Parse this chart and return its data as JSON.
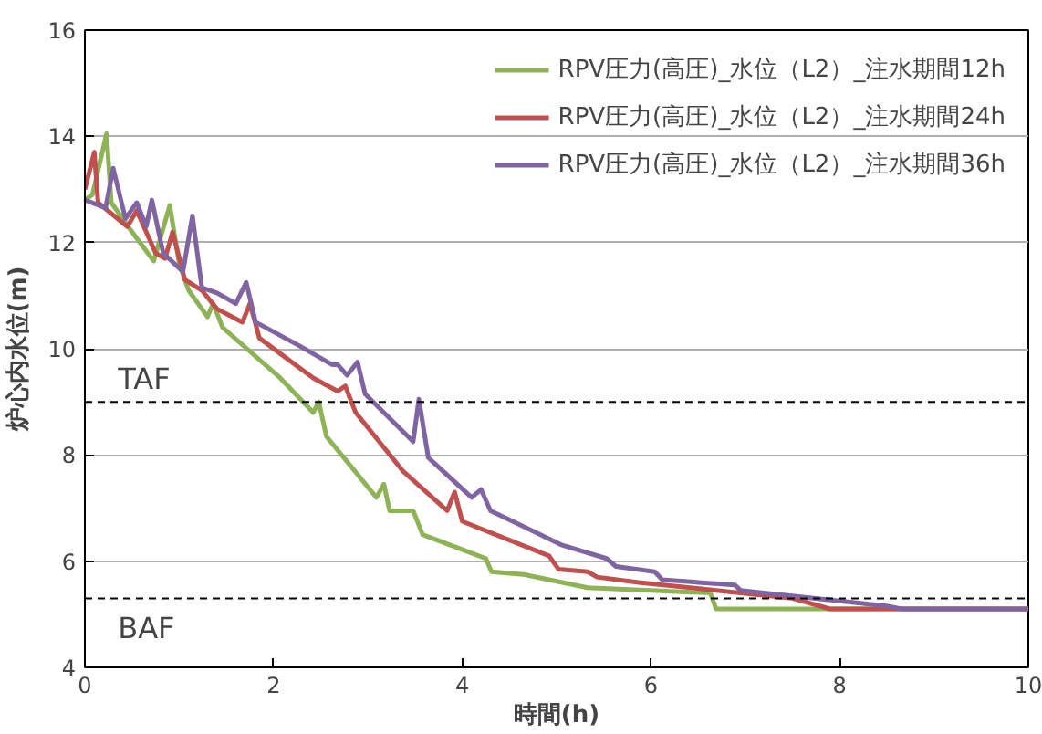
{
  "chart_data": {
    "type": "line",
    "xlabel": "時間(h)",
    "ylabel": "炉心内水位(m)",
    "xlim": [
      0,
      10
    ],
    "ylim": [
      4,
      16
    ],
    "xticks": [
      0,
      2,
      4,
      6,
      8,
      10
    ],
    "yticks": [
      4,
      6,
      8,
      10,
      12,
      14,
      16
    ],
    "grid": "y",
    "legend": "top right",
    "line_style": "solid",
    "ref_lines": [
      {
        "axis": "y",
        "value": 9.0,
        "label": "TAF",
        "color": "#000000",
        "line_style": "dashed"
      },
      {
        "axis": "y",
        "value": 5.3,
        "label": "BAF",
        "color": "#000000",
        "line_style": "dashed"
      }
    ],
    "series": [
      {
        "name": "RPV圧力(高圧)_水位（L2）_注水期間12h",
        "color": "#8db356",
        "x": [
          0,
          0.08,
          0.23,
          0.28,
          0.5,
          0.73,
          0.9,
          1.0,
          1.1,
          1.3,
          1.36,
          1.46,
          2.07,
          2.42,
          2.48,
          2.56,
          3.09,
          3.17,
          3.23,
          3.48,
          3.58,
          4.25,
          4.31,
          4.65,
          5.33,
          6.63,
          6.69,
          10
        ],
        "values": [
          12.8,
          12.9,
          14.05,
          12.75,
          12.2,
          11.65,
          12.7,
          11.6,
          11.1,
          10.6,
          10.85,
          10.4,
          9.45,
          8.8,
          9.0,
          8.35,
          7.2,
          7.45,
          6.95,
          6.95,
          6.5,
          6.05,
          5.8,
          5.75,
          5.5,
          5.4,
          5.1,
          5.1
        ]
      },
      {
        "name": "RPV圧力(高圧)_水位（L2）_注水期間24h",
        "color": "#c0504d",
        "x": [
          0,
          0.1,
          0.14,
          0.45,
          0.55,
          0.75,
          0.85,
          0.93,
          1.06,
          1.24,
          1.4,
          1.67,
          1.75,
          1.85,
          2.42,
          2.68,
          2.76,
          2.87,
          3.37,
          3.84,
          3.92,
          4.0,
          4.92,
          5.02,
          5.33,
          5.43,
          5.87,
          6.69,
          7.5,
          7.9,
          10
        ],
        "values": [
          13.0,
          13.7,
          12.75,
          12.3,
          12.6,
          11.8,
          11.7,
          12.2,
          11.3,
          11.1,
          10.75,
          10.5,
          10.85,
          10.2,
          9.45,
          9.2,
          9.3,
          8.8,
          7.7,
          6.95,
          7.3,
          6.75,
          6.1,
          5.85,
          5.8,
          5.7,
          5.6,
          5.45,
          5.3,
          5.1,
          5.1
        ]
      },
      {
        "name": "RPV圧力(高圧)_水位（L2）_注水期間36h",
        "color": "#8064a2",
        "x": [
          0,
          0.22,
          0.3,
          0.43,
          0.55,
          0.65,
          0.71,
          0.83,
          1.04,
          1.14,
          1.24,
          1.4,
          1.6,
          1.71,
          1.81,
          2.28,
          2.62,
          2.68,
          2.78,
          2.89,
          2.97,
          3.48,
          3.54,
          3.64,
          4.1,
          4.2,
          4.3,
          4.65,
          5.06,
          5.53,
          5.63,
          6.04,
          6.12,
          6.89,
          6.95,
          8.52,
          8.66,
          10
        ],
        "values": [
          12.8,
          12.65,
          13.4,
          12.45,
          12.75,
          12.3,
          12.8,
          11.8,
          11.45,
          12.5,
          11.15,
          11.05,
          10.85,
          11.25,
          10.5,
          10.05,
          9.7,
          9.7,
          9.5,
          9.75,
          9.15,
          8.25,
          9.05,
          7.95,
          7.2,
          7.35,
          6.95,
          6.65,
          6.3,
          6.05,
          5.9,
          5.8,
          5.65,
          5.55,
          5.45,
          5.15,
          5.1,
          5.1
        ]
      }
    ]
  }
}
